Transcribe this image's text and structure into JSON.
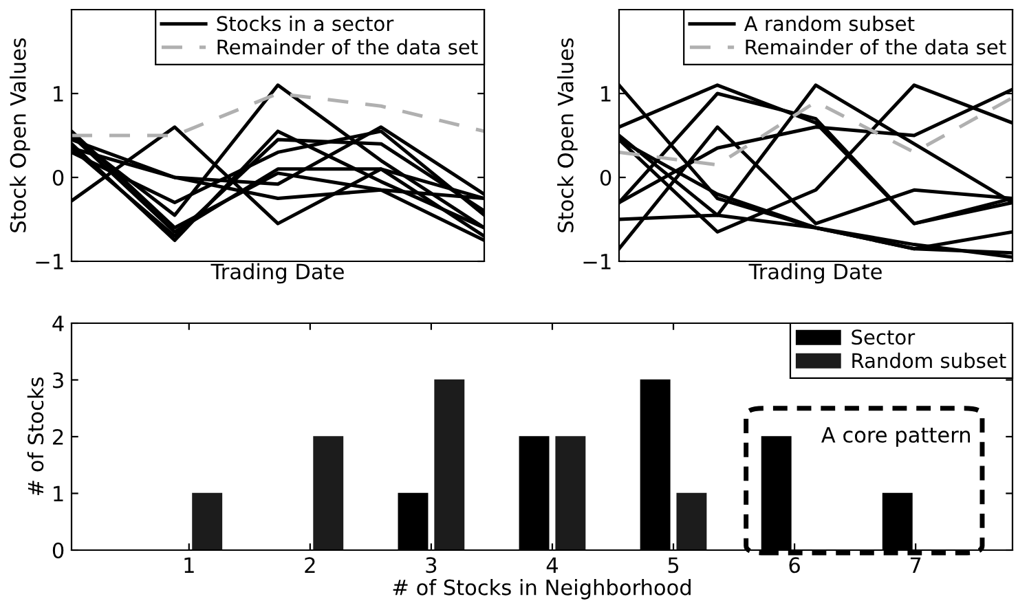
{
  "chart_data": [
    {
      "type": "line",
      "ylabel": "Stock Open Values",
      "xlabel": "Trading Date",
      "categories": [
        null,
        null,
        null,
        null,
        null
      ],
      "ylim": [
        -1,
        2
      ],
      "yticks": [
        {
          "value": -1,
          "label": "−1"
        },
        0,
        1
      ],
      "tick_labels": "y",
      "legend": "top right",
      "grid": false,
      "series": [
        {
          "name": "Stocks in a sector",
          "color": "#000000",
          "values": [
            0.5,
            -0.45,
            1.1,
            0.2,
            -0.6
          ]
        },
        {
          "color": "#000000",
          "values": [
            -0.28,
            0.6,
            -0.55,
            0.1,
            -0.25
          ]
        },
        {
          "color": "#000000",
          "values": [
            0.45,
            0.0,
            -0.08,
            0.6,
            -0.2
          ]
        },
        {
          "color": "#000000",
          "values": [
            0.4,
            -0.75,
            0.55,
            -0.05,
            -0.6
          ]
        },
        {
          "color": "#000000",
          "values": [
            0.35,
            -0.7,
            0.45,
            0.4,
            -0.4
          ]
        },
        {
          "color": "#000000",
          "values": [
            0.3,
            -0.3,
            0.3,
            0.55,
            -0.45
          ]
        },
        {
          "color": "#000000",
          "values": [
            0.5,
            -0.65,
            0.1,
            0.1,
            -0.7
          ]
        },
        {
          "color": "#000000",
          "values": [
            0.35,
            0.0,
            -0.25,
            -0.15,
            -0.75
          ]
        },
        {
          "color": "#000000",
          "values": [
            0.55,
            -0.6,
            0.05,
            -0.15,
            -0.25
          ]
        },
        {
          "name": "Remainder of the data set",
          "color": "#b0b0b0",
          "line_style": "dashed",
          "values": [
            0.5,
            0.5,
            1.0,
            0.85,
            0.55
          ]
        }
      ]
    },
    {
      "type": "line",
      "ylabel": "Stock Open Values",
      "xlabel": "Trading Date",
      "categories": [
        null,
        null,
        null,
        null,
        null
      ],
      "ylim": [
        -1,
        2
      ],
      "yticks": [
        {
          "value": -1,
          "label": "−1"
        },
        0,
        1
      ],
      "tick_labels": "y",
      "legend": "top right",
      "grid": false,
      "series": [
        {
          "name": "A random subset",
          "color": "#000000",
          "values": [
            1.1,
            -0.25,
            -0.6,
            -0.85,
            -0.9
          ]
        },
        {
          "color": "#000000",
          "values": [
            0.6,
            1.1,
            0.65,
            -0.55,
            -0.3
          ]
        },
        {
          "color": "#000000",
          "values": [
            0.5,
            -0.45,
            1.1,
            0.4,
            -0.3
          ]
        },
        {
          "color": "#000000",
          "values": [
            -0.3,
            1.0,
            0.7,
            -0.55,
            -0.25
          ]
        },
        {
          "color": "#000000",
          "values": [
            -0.85,
            0.6,
            -0.55,
            -0.15,
            -0.25
          ]
        },
        {
          "color": "#000000",
          "values": [
            0.45,
            -0.65,
            -0.15,
            1.1,
            0.65
          ]
        },
        {
          "color": "#000000",
          "values": [
            -0.5,
            -0.45,
            -0.6,
            -0.85,
            -0.65
          ]
        },
        {
          "color": "#000000",
          "values": [
            -0.3,
            0.35,
            0.6,
            0.5,
            1.05
          ]
        },
        {
          "color": "#000000",
          "values": [
            0.45,
            -0.2,
            -0.6,
            -0.8,
            -0.95
          ]
        },
        {
          "name": "Remainder of the data set",
          "color": "#b0b0b0",
          "line_style": "dashed",
          "values": [
            0.3,
            0.15,
            0.9,
            0.3,
            0.95
          ]
        }
      ]
    },
    {
      "type": "bar",
      "xlabel": "# of Stocks in Neighborhood",
      "ylabel": "# of Stocks",
      "categories": [
        "1",
        "2",
        "3",
        "4",
        "5",
        "6",
        "7"
      ],
      "ylim": [
        0,
        4
      ],
      "yticks": [
        0,
        1,
        2,
        3,
        4
      ],
      "legend": "top right",
      "grid": false,
      "annotations": [
        "A core pattern"
      ],
      "series": [
        {
          "name": "Sector",
          "color": "#000000",
          "values": [
            0,
            0,
            1,
            2,
            3,
            2,
            1
          ]
        },
        {
          "name": "Random subset",
          "color": "#1c1c1c",
          "values": [
            1,
            2,
            3,
            2,
            1,
            0,
            0
          ]
        }
      ]
    }
  ]
}
